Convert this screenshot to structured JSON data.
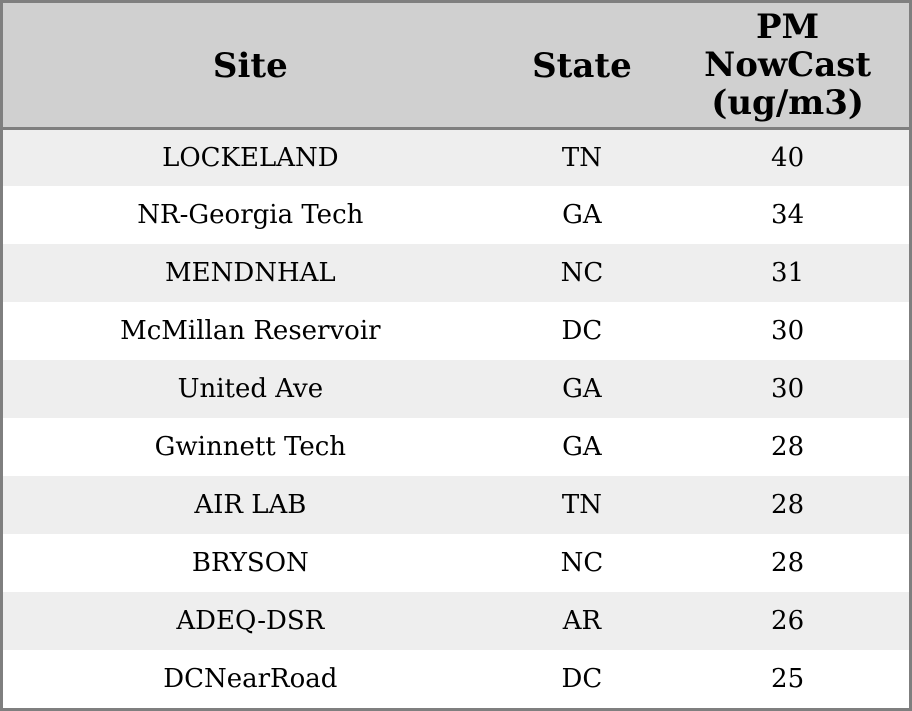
{
  "colors": {
    "header_background": "#d0d0d0",
    "border": "#7f7f7f",
    "row_stripe_odd": "#eeeeee",
    "row_stripe_even": "#ffffff",
    "text": "#000000"
  },
  "chart_data": {
    "type": "table",
    "title": "",
    "columns": {
      "site": "Site",
      "state": "State",
      "pm": "PM NowCast (ug/m3)"
    },
    "rows": [
      {
        "site": "LOCKELAND",
        "state": "TN",
        "pm": "40"
      },
      {
        "site": "NR-Georgia Tech",
        "state": "GA",
        "pm": "34"
      },
      {
        "site": "MENDNHAL",
        "state": "NC",
        "pm": "31"
      },
      {
        "site": "McMillan Reservoir",
        "state": "DC",
        "pm": "30"
      },
      {
        "site": "United Ave",
        "state": "GA",
        "pm": "30"
      },
      {
        "site": "Gwinnett Tech",
        "state": "GA",
        "pm": "28"
      },
      {
        "site": "AIR LAB",
        "state": "TN",
        "pm": "28"
      },
      {
        "site": "BRYSON",
        "state": "NC",
        "pm": "28"
      },
      {
        "site": "ADEQ-DSR",
        "state": "AR",
        "pm": "26"
      },
      {
        "site": "DCNearRoad",
        "state": "DC",
        "pm": "25"
      }
    ]
  }
}
